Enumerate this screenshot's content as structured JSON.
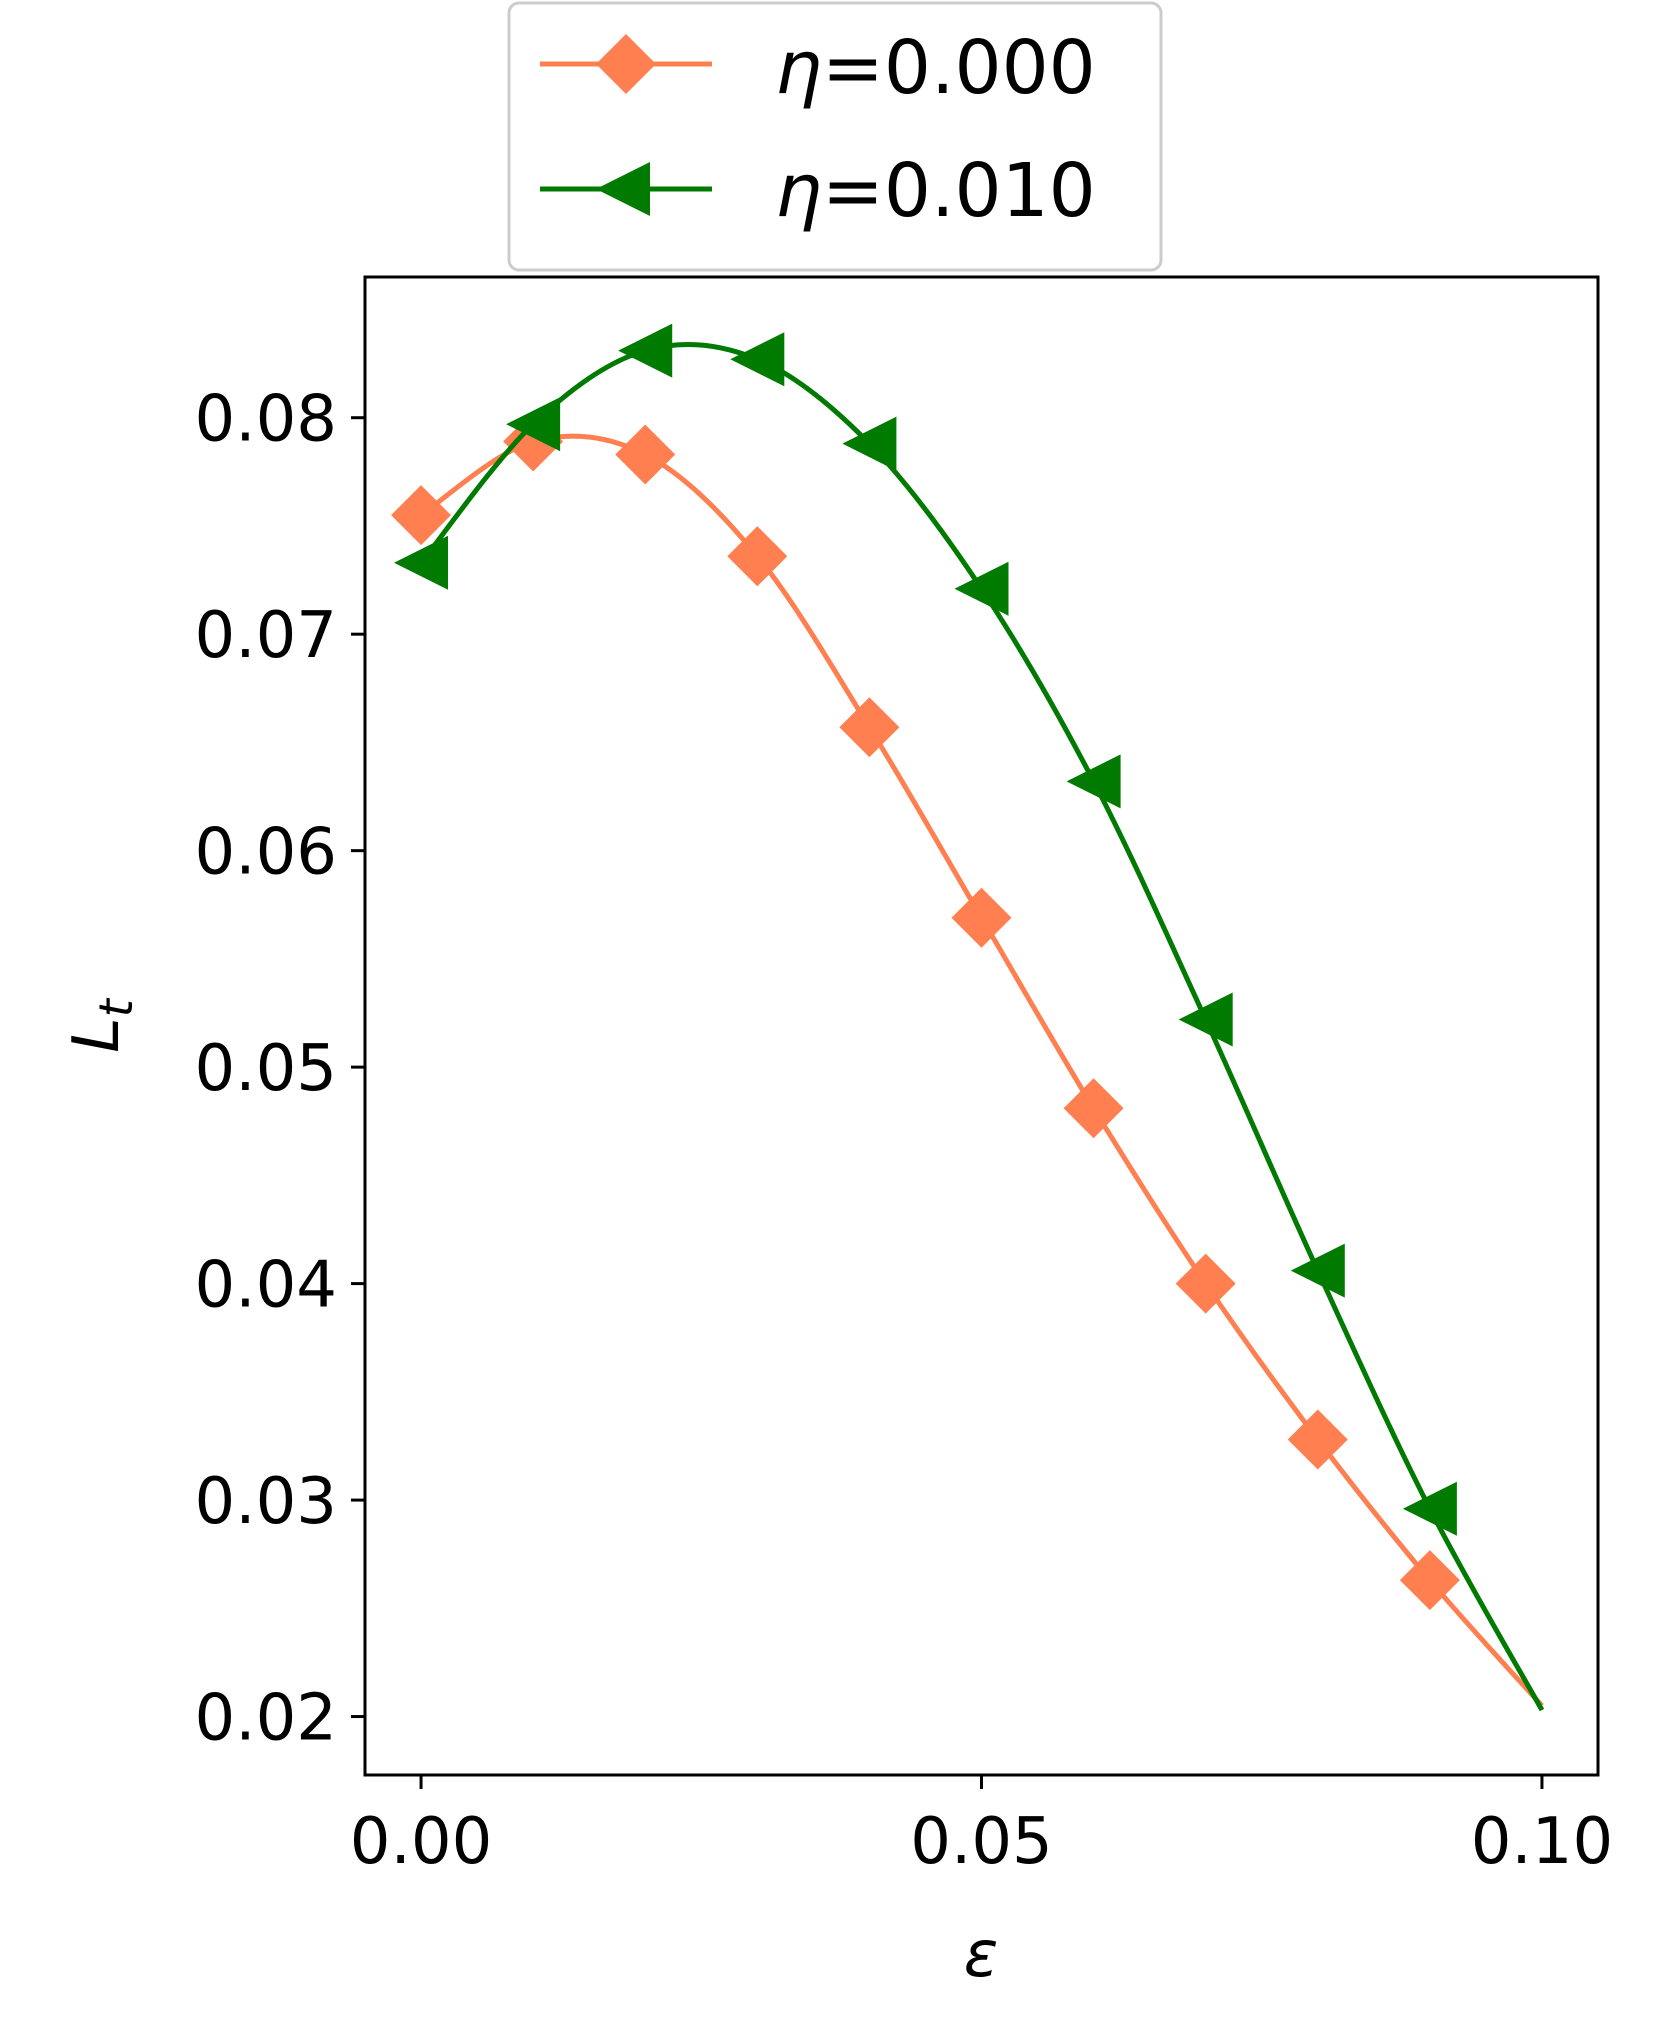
{
  "chart_data": {
    "type": "line",
    "xlabel": "ε",
    "ylabel": "L",
    "ylabel_subscript": "t",
    "xlim": [
      -0.005,
      0.105
    ],
    "ylim": [
      0.0173,
      0.0865
    ],
    "xticks": [
      0.0,
      0.05,
      0.1
    ],
    "xtick_labels": [
      "0.00",
      "0.05",
      "0.10"
    ],
    "yticks": [
      0.02,
      0.03,
      0.04,
      0.05,
      0.06,
      0.07,
      0.08
    ],
    "ytick_labels": [
      "0.02",
      "0.03",
      "0.04",
      "0.05",
      "0.06",
      "0.07",
      "0.08"
    ],
    "grid": false,
    "legend_position": "top-center, above plot",
    "series": [
      {
        "name": "η=0.000",
        "label_symbol": "η",
        "label_value": "=0.000",
        "color": "#ff7f50",
        "marker": "diamond",
        "x": [
          0.0,
          0.01,
          0.02,
          0.03,
          0.04,
          0.05,
          0.06,
          0.07,
          0.08,
          0.09,
          0.1
        ],
        "y": [
          0.0755,
          0.0789,
          0.0783,
          0.0736,
          0.0657,
          0.0569,
          0.0481,
          0.04,
          0.0328,
          0.0263,
          0.0205
        ]
      },
      {
        "name": "η=0.010",
        "label_symbol": "η",
        "label_value": "=0.010",
        "color": "#007a00",
        "marker": "triangle-left",
        "x": [
          0.0,
          0.01,
          0.02,
          0.03,
          0.04,
          0.05,
          0.06,
          0.07,
          0.08,
          0.09,
          0.1
        ],
        "y": [
          0.0733,
          0.0797,
          0.0831,
          0.0827,
          0.0788,
          0.0721,
          0.0632,
          0.0522,
          0.0406,
          0.0296,
          0.0203
        ]
      }
    ]
  }
}
